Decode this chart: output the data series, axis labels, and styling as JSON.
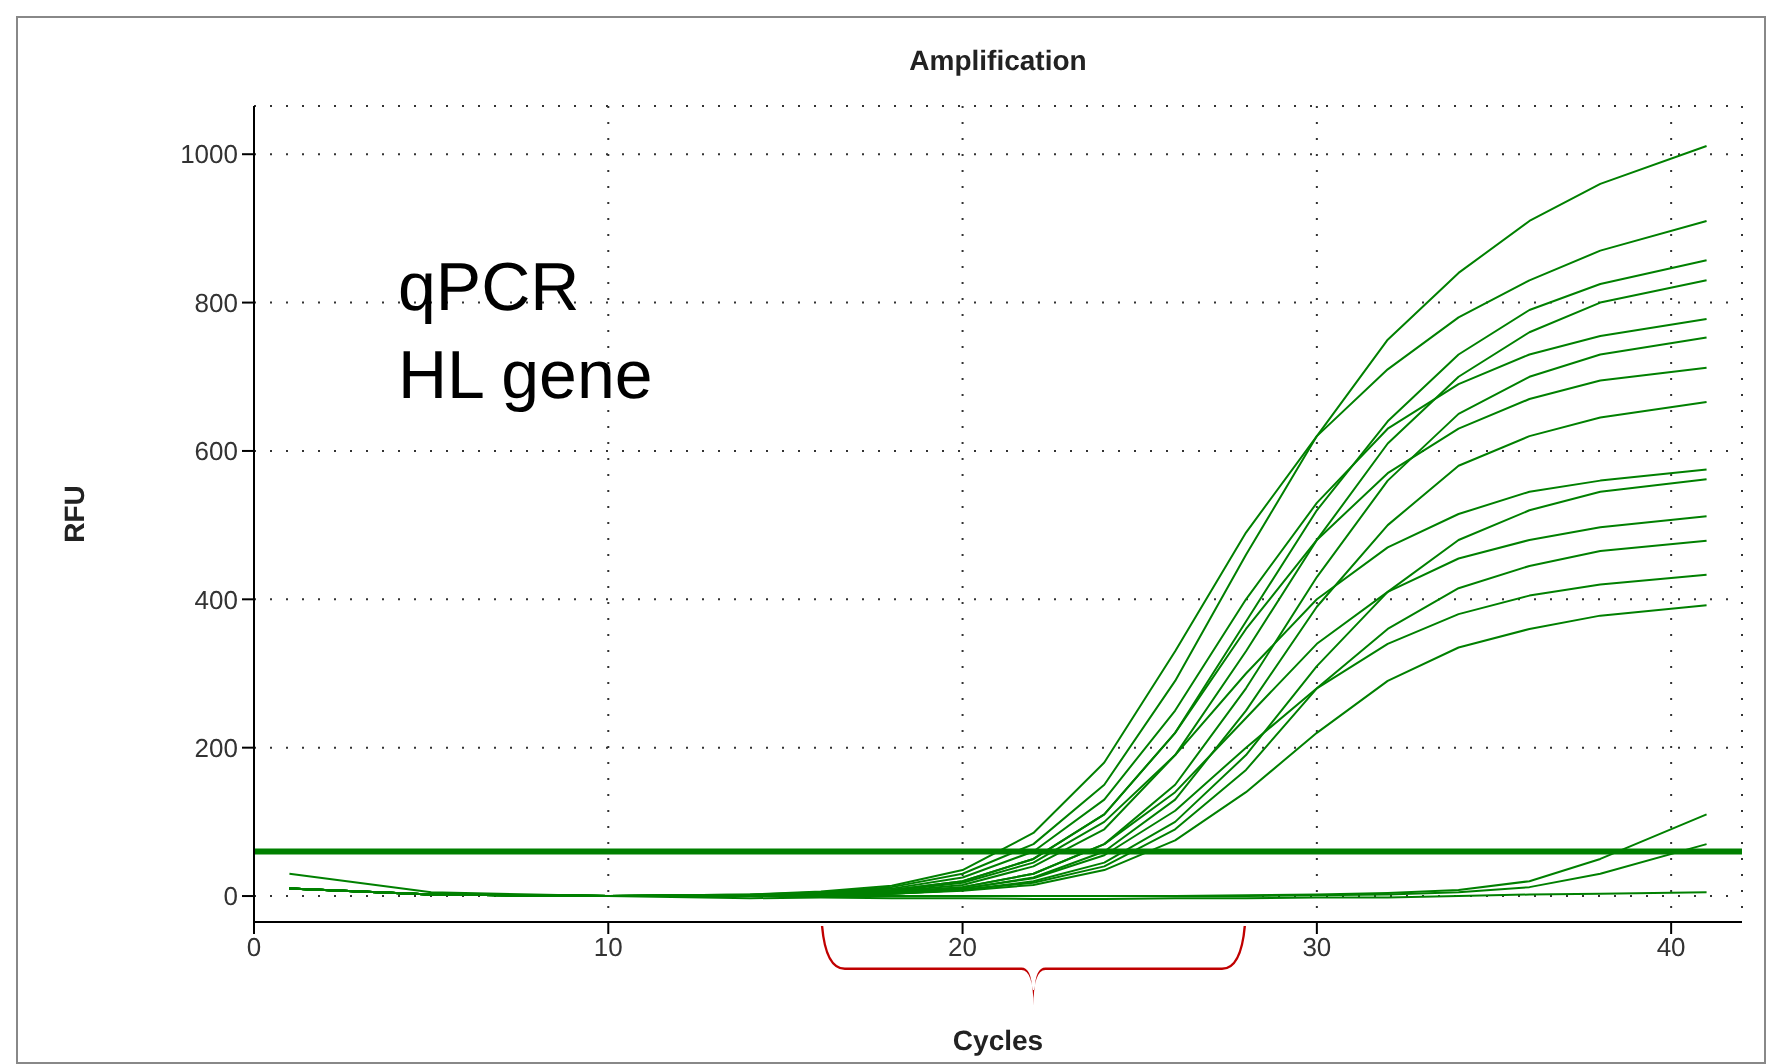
{
  "chart_data": {
    "type": "line",
    "title": "Amplification",
    "xlabel": "Cycles",
    "ylabel": "RFU",
    "annotations": [
      "qPCR",
      "HL gene"
    ],
    "x": [
      1,
      5,
      10,
      14,
      16,
      18,
      20,
      22,
      24,
      26,
      28,
      30,
      32,
      34,
      36,
      38,
      41
    ],
    "xlim": [
      0,
      42
    ],
    "xticks": [
      0,
      10,
      20,
      30,
      40
    ],
    "ylim": [
      -35,
      1065
    ],
    "yticks": [
      0,
      200,
      400,
      600,
      800,
      1000
    ],
    "grid": true,
    "marker": "none",
    "line_style": "solid",
    "ref_lines": [
      {
        "axis": "y",
        "value": 60,
        "color": "#008000"
      }
    ],
    "series": [
      {
        "color": "#008000",
        "values": [
          10,
          2,
          0,
          2,
          5,
          12,
          30,
          70,
          150,
          290,
          460,
          620,
          750,
          840,
          910,
          960,
          1011
        ]
      },
      {
        "color": "#008000",
        "values": [
          10,
          2,
          0,
          2,
          6,
          14,
          35,
          85,
          180,
          330,
          490,
          620,
          710,
          780,
          830,
          870,
          910
        ]
      },
      {
        "color": "#008000",
        "values": [
          10,
          2,
          0,
          1,
          3,
          8,
          20,
          50,
          110,
          220,
          370,
          520,
          640,
          730,
          790,
          825,
          857
        ]
      },
      {
        "color": "#008000",
        "values": [
          10,
          2,
          0,
          1,
          3,
          6,
          15,
          40,
          90,
          190,
          330,
          480,
          610,
          700,
          760,
          800,
          830
        ]
      },
      {
        "color": "#008000",
        "values": [
          10,
          2,
          0,
          1,
          4,
          10,
          25,
          60,
          130,
          250,
          400,
          530,
          630,
          690,
          730,
          755,
          778
        ]
      },
      {
        "color": "#008000",
        "values": [
          10,
          2,
          0,
          1,
          2,
          5,
          12,
          30,
          70,
          150,
          280,
          430,
          560,
          650,
          700,
          730,
          753
        ]
      },
      {
        "color": "#008000",
        "values": [
          10,
          2,
          0,
          1,
          3,
          8,
          20,
          50,
          110,
          220,
          360,
          480,
          570,
          630,
          670,
          695,
          712
        ]
      },
      {
        "color": "#008000",
        "values": [
          10,
          2,
          0,
          1,
          2,
          4,
          10,
          25,
          60,
          130,
          250,
          390,
          500,
          580,
          620,
          645,
          666
        ]
      },
      {
        "color": "#008000",
        "values": [
          10,
          2,
          0,
          1,
          3,
          7,
          18,
          45,
          100,
          190,
          300,
          400,
          470,
          515,
          545,
          560,
          575
        ]
      },
      {
        "color": "#008000",
        "values": [
          10,
          2,
          0,
          0,
          2,
          3,
          8,
          20,
          45,
          100,
          190,
          310,
          410,
          480,
          520,
          545,
          562
        ]
      },
      {
        "color": "#008000",
        "values": [
          10,
          2,
          0,
          1,
          2,
          5,
          12,
          30,
          70,
          140,
          240,
          340,
          410,
          455,
          480,
          497,
          512
        ]
      },
      {
        "color": "#008000",
        "values": [
          10,
          2,
          0,
          0,
          1,
          3,
          8,
          18,
          40,
          90,
          170,
          280,
          360,
          415,
          445,
          465,
          479
        ]
      },
      {
        "color": "#008000",
        "values": [
          10,
          2,
          0,
          1,
          2,
          4,
          10,
          24,
          55,
          115,
          200,
          280,
          340,
          380,
          405,
          420,
          433
        ]
      },
      {
        "color": "#008000",
        "values": [
          10,
          2,
          0,
          0,
          1,
          3,
          7,
          15,
          35,
          75,
          140,
          220,
          290,
          335,
          360,
          378,
          392
        ]
      },
      {
        "color": "#008000",
        "values": [
          10,
          2,
          0,
          0,
          0,
          0,
          0,
          0,
          0,
          0,
          1,
          2,
          4,
          8,
          20,
          50,
          110
        ]
      },
      {
        "color": "#008000",
        "values": [
          10,
          2,
          0,
          0,
          0,
          0,
          0,
          0,
          0,
          0,
          0,
          1,
          2,
          5,
          12,
          30,
          70
        ]
      },
      {
        "color": "#008000",
        "values": [
          30,
          5,
          0,
          -3,
          -2,
          -3,
          -3,
          -4,
          -4,
          -3,
          -3,
          -2,
          -2,
          0,
          2,
          3,
          5
        ]
      }
    ]
  }
}
